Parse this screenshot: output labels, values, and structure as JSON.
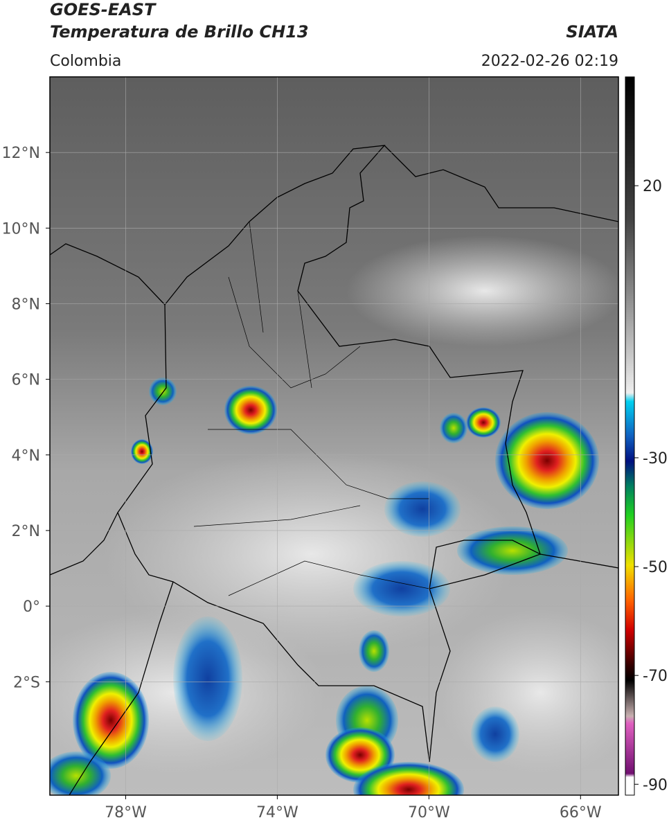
{
  "header": {
    "satellite": "GOES-EAST",
    "product": "Temperatura de Brillo CH13",
    "source": "SIATA",
    "region": "Colombia",
    "datetime": "2022-02-26 02:19"
  },
  "map": {
    "xlim": [
      -80,
      -65
    ],
    "ylim": [
      -5,
      14
    ],
    "xticks": [
      {
        "value": -78,
        "label": "78°W"
      },
      {
        "value": -74,
        "label": "74°W"
      },
      {
        "value": -70,
        "label": "70°W"
      },
      {
        "value": -66,
        "label": "66°W"
      }
    ],
    "yticks": [
      {
        "value": 12,
        "label": "12°N"
      },
      {
        "value": 10,
        "label": "10°N"
      },
      {
        "value": 8,
        "label": "8°N"
      },
      {
        "value": 6,
        "label": "6°N"
      },
      {
        "value": 4,
        "label": "4°N"
      },
      {
        "value": 2,
        "label": "2°N"
      },
      {
        "value": 0,
        "label": "0°"
      },
      {
        "value": -2,
        "label": "2°S"
      }
    ],
    "grid": true
  },
  "colorbar": {
    "lim": [
      -92,
      40
    ],
    "ticks": [
      20,
      -30,
      -50,
      -70,
      -90
    ]
  }
}
